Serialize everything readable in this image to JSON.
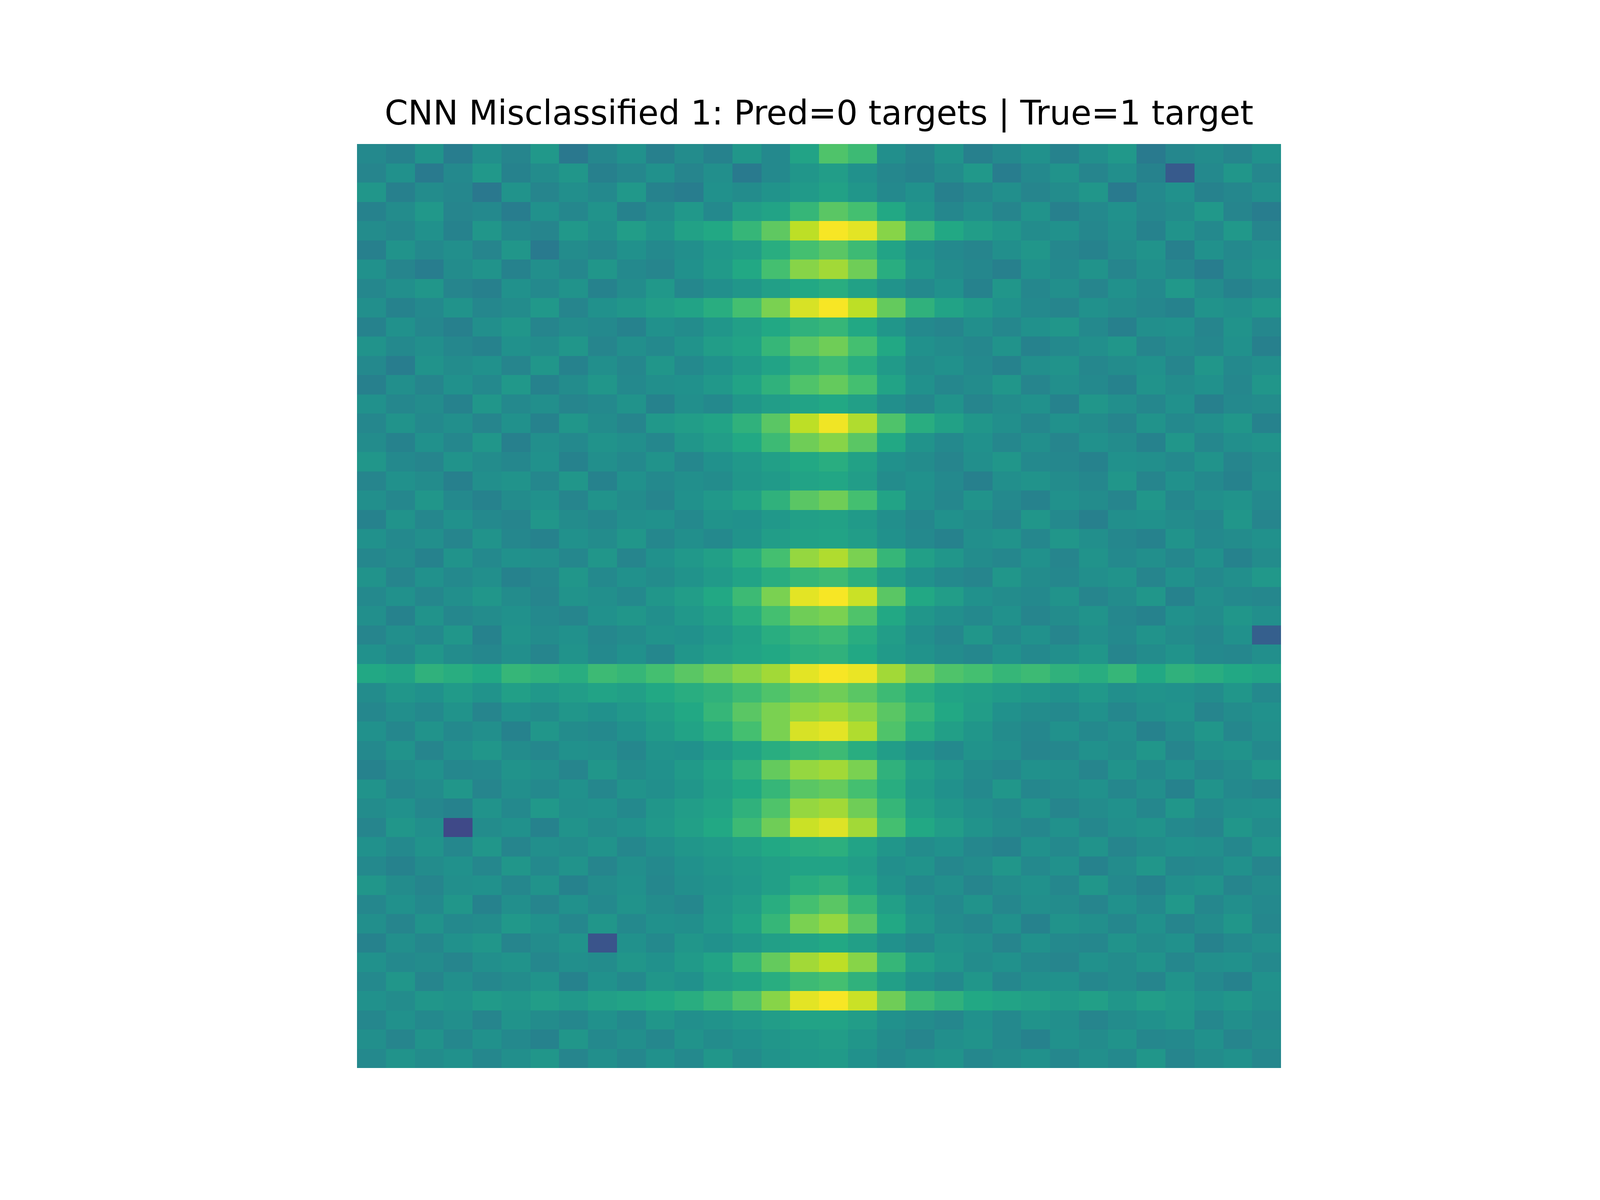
{
  "chart_data": {
    "type": "heatmap",
    "title": "CNN Misclassified 1: Pred=0 targets | True=1 target",
    "color": "viridis",
    "value_range": [
      0,
      100
    ],
    "tick_labels": false,
    "cells": [
      [
        47,
        44,
        51,
        42,
        49,
        45,
        53,
        40,
        46,
        50,
        43,
        48,
        44,
        52,
        47,
        58,
        72,
        68,
        49,
        45,
        51,
        43,
        47,
        50,
        44,
        49,
        53,
        41,
        46,
        48,
        45,
        50
      ],
      [
        45,
        50,
        41,
        47,
        53,
        44,
        48,
        52,
        43,
        46,
        50,
        45,
        49,
        41,
        47,
        52,
        55,
        50,
        46,
        44,
        48,
        53,
        42,
        47,
        51,
        45,
        49,
        44,
        28,
        47,
        52,
        46
      ],
      [
        52,
        43,
        48,
        46,
        40,
        51,
        45,
        49,
        47,
        53,
        44,
        42,
        50,
        48,
        51,
        54,
        57,
        52,
        47,
        50,
        43,
        46,
        49,
        45,
        48,
        52,
        41,
        47,
        50,
        44,
        46,
        49
      ],
      [
        44,
        48,
        53,
        45,
        47,
        42,
        50,
        46,
        51,
        44,
        48,
        53,
        47,
        55,
        58,
        66,
        74,
        70,
        60,
        52,
        46,
        49,
        45,
        51,
        43,
        47,
        50,
        46,
        48,
        53,
        45,
        42
      ],
      [
        48,
        46,
        50,
        44,
        52,
        47,
        45,
        53,
        49,
        55,
        51,
        57,
        60,
        66,
        75,
        90,
        99,
        96,
        82,
        68,
        60,
        55,
        52,
        48,
        50,
        46,
        49,
        44,
        51,
        47,
        53,
        45
      ],
      [
        43,
        51,
        47,
        49,
        45,
        52,
        41,
        48,
        46,
        50,
        47,
        49,
        53,
        55,
        62,
        70,
        74,
        68,
        58,
        50,
        47,
        45,
        49,
        52,
        46,
        44,
        48,
        51,
        43,
        50,
        47,
        49
      ],
      [
        50,
        45,
        42,
        48,
        51,
        44,
        49,
        46,
        52,
        47,
        45,
        50,
        54,
        60,
        70,
        82,
        86,
        78,
        62,
        52,
        48,
        46,
        43,
        50,
        47,
        51,
        45,
        49,
        46,
        42,
        48,
        51
      ],
      [
        46,
        49,
        52,
        45,
        43,
        50,
        47,
        51,
        44,
        48,
        53,
        46,
        49,
        52,
        56,
        60,
        62,
        57,
        51,
        47,
        50,
        44,
        52,
        46,
        49,
        45,
        50,
        47,
        53,
        48,
        44,
        47
      ],
      [
        49,
        44,
        47,
        51,
        46,
        48,
        53,
        45,
        50,
        52,
        55,
        58,
        62,
        70,
        80,
        94,
        99,
        90,
        76,
        64,
        58,
        54,
        50,
        47,
        45,
        50,
        48,
        46,
        44,
        51,
        49,
        52
      ],
      [
        44,
        50,
        46,
        43,
        49,
        52,
        45,
        48,
        47,
        44,
        50,
        48,
        52,
        56,
        60,
        64,
        66,
        60,
        52,
        47,
        45,
        49,
        46,
        50,
        52,
        47,
        43,
        49,
        50,
        45,
        51,
        46
      ],
      [
        51,
        47,
        49,
        46,
        44,
        50,
        48,
        52,
        45,
        49,
        47,
        51,
        55,
        58,
        66,
        74,
        78,
        70,
        60,
        50,
        48,
        46,
        51,
        44,
        47,
        49,
        52,
        45,
        48,
        46,
        50,
        43
      ],
      [
        47,
        42,
        51,
        48,
        50,
        45,
        52,
        44,
        49,
        46,
        52,
        47,
        50,
        54,
        58,
        64,
        68,
        62,
        54,
        48,
        50,
        47,
        44,
        49,
        51,
        46,
        48,
        50,
        45,
        52,
        47,
        49
      ],
      [
        43,
        49,
        45,
        50,
        47,
        53,
        44,
        48,
        52,
        47,
        49,
        50,
        53,
        58,
        64,
        72,
        76,
        70,
        58,
        50,
        46,
        48,
        52,
        45,
        49,
        47,
        44,
        51,
        48,
        50,
        46,
        52
      ],
      [
        50,
        46,
        48,
        44,
        52,
        47,
        49,
        45,
        47,
        51,
        44,
        49,
        47,
        52,
        55,
        58,
        60,
        56,
        49,
        46,
        51,
        45,
        48,
        50,
        44,
        52,
        49,
        46,
        50,
        43,
        47,
        48
      ],
      [
        46,
        51,
        47,
        49,
        45,
        50,
        44,
        52,
        48,
        45,
        53,
        55,
        58,
        64,
        74,
        90,
        98,
        88,
        72,
        62,
        57,
        52,
        49,
        46,
        50,
        48,
        45,
        51,
        47,
        49,
        52,
        44
      ],
      [
        48,
        44,
        50,
        46,
        52,
        43,
        49,
        47,
        51,
        49,
        46,
        52,
        55,
        60,
        68,
        78,
        82,
        74,
        60,
        51,
        47,
        50,
        46,
        49,
        45,
        50,
        48,
        44,
        52,
        46,
        49,
        51
      ],
      [
        52,
        47,
        45,
        51,
        48,
        46,
        50,
        44,
        49,
        47,
        51,
        46,
        50,
        53,
        56,
        60,
        62,
        57,
        50,
        48,
        45,
        49,
        52,
        47,
        46,
        44,
        50,
        49,
        47,
        51,
        45,
        48
      ],
      [
        45,
        50,
        48,
        43,
        49,
        51,
        46,
        52,
        44,
        50,
        47,
        49,
        48,
        52,
        54,
        58,
        59,
        55,
        48,
        50,
        47,
        43,
        49,
        51,
        48,
        46,
        52,
        45,
        50,
        47,
        44,
        49
      ],
      [
        49,
        46,
        52,
        47,
        44,
        48,
        50,
        45,
        51,
        48,
        45,
        50,
        53,
        57,
        64,
        74,
        78,
        70,
        58,
        49,
        46,
        51,
        47,
        44,
        50,
        48,
        45,
        52,
        46,
        49,
        51,
        47
      ],
      [
        44,
        51,
        46,
        50,
        47,
        45,
        52,
        48,
        46,
        49,
        50,
        47,
        51,
        50,
        53,
        56,
        57,
        54,
        49,
        46,
        50,
        48,
        45,
        52,
        47,
        43,
        49,
        50,
        48,
        46,
        52,
        45
      ],
      [
        50,
        47,
        49,
        45,
        51,
        46,
        44,
        50,
        48,
        52,
        46,
        49,
        47,
        51,
        55,
        57,
        58,
        55,
        50,
        47,
        44,
        49,
        51,
        46,
        52,
        49,
        46,
        44,
        51,
        47,
        48,
        50
      ],
      [
        46,
        48,
        44,
        51,
        47,
        50,
        49,
        46,
        52,
        45,
        50,
        53,
        56,
        62,
        70,
        84,
        88,
        80,
        66,
        56,
        52,
        48,
        46,
        50,
        45,
        51,
        47,
        49,
        46,
        50,
        44,
        48
      ],
      [
        51,
        45,
        50,
        47,
        49,
        44,
        46,
        52,
        47,
        50,
        48,
        51,
        54,
        58,
        62,
        66,
        68,
        63,
        55,
        50,
        47,
        45,
        52,
        48,
        46,
        49,
        51,
        45,
        50,
        47,
        49,
        53
      ],
      [
        47,
        50,
        46,
        49,
        52,
        48,
        45,
        51,
        49,
        47,
        52,
        55,
        60,
        68,
        80,
        96,
        99,
        92,
        74,
        60,
        55,
        50,
        48,
        47,
        51,
        45,
        48,
        52,
        44,
        49,
        47,
        46
      ],
      [
        49,
        44,
        51,
        46,
        48,
        50,
        47,
        45,
        50,
        52,
        49,
        53,
        56,
        62,
        70,
        78,
        80,
        72,
        60,
        52,
        49,
        47,
        50,
        45,
        48,
        51,
        46,
        44,
        50,
        48,
        52,
        49
      ],
      [
        45,
        49,
        47,
        52,
        44,
        51,
        48,
        50,
        46,
        48,
        51,
        50,
        53,
        57,
        62,
        66,
        68,
        62,
        55,
        49,
        46,
        52,
        47,
        50,
        45,
        49,
        47,
        51,
        48,
        46,
        50,
        30
      ],
      [
        50,
        47,
        52,
        48,
        46,
        49,
        45,
        51,
        47,
        50,
        46,
        52,
        55,
        58,
        60,
        63,
        64,
        60,
        54,
        51,
        48,
        46,
        50,
        47,
        49,
        52,
        45,
        48,
        51,
        47,
        46,
        49
      ],
      [
        60,
        58,
        64,
        62,
        60,
        66,
        64,
        62,
        68,
        66,
        70,
        74,
        78,
        82,
        86,
        96,
        99,
        97,
        86,
        78,
        72,
        70,
        66,
        68,
        64,
        62,
        66,
        60,
        64,
        62,
        60,
        58
      ],
      [
        48,
        52,
        50,
        54,
        51,
        56,
        53,
        55,
        58,
        56,
        60,
        62,
        64,
        68,
        72,
        76,
        78,
        74,
        68,
        62,
        58,
        56,
        54,
        52,
        50,
        53,
        49,
        51,
        50,
        48,
        52,
        47
      ],
      [
        46,
        49,
        47,
        51,
        45,
        50,
        48,
        52,
        50,
        53,
        56,
        60,
        66,
        74,
        80,
        84,
        86,
        82,
        74,
        66,
        60,
        55,
        50,
        48,
        47,
        50,
        46,
        49,
        51,
        45,
        48,
        50
      ],
      [
        50,
        46,
        51,
        47,
        49,
        44,
        52,
        48,
        47,
        50,
        54,
        58,
        62,
        70,
        80,
        94,
        96,
        88,
        72,
        62,
        56,
        52,
        48,
        46,
        50,
        47,
        49,
        44,
        48,
        52,
        46,
        49
      ],
      [
        47,
        51,
        45,
        49,
        52,
        48,
        46,
        50,
        49,
        46,
        51,
        50,
        54,
        58,
        62,
        66,
        68,
        62,
        55,
        50,
        47,
        51,
        49,
        45,
        46,
        50,
        48,
        52,
        45,
        49,
        51,
        47
      ],
      [
        44,
        48,
        50,
        46,
        47,
        51,
        49,
        45,
        52,
        48,
        50,
        54,
        58,
        64,
        76,
        84,
        86,
        80,
        64,
        56,
        52,
        48,
        46,
        50,
        49,
        45,
        51,
        47,
        50,
        46,
        48,
        52
      ],
      [
        51,
        46,
        48,
        52,
        45,
        49,
        47,
        50,
        46,
        51,
        49,
        52,
        56,
        60,
        66,
        74,
        76,
        70,
        62,
        54,
        50,
        47,
        52,
        46,
        48,
        50,
        46,
        49,
        44,
        51,
        47,
        45
      ],
      [
        48,
        50,
        46,
        44,
        51,
        47,
        53,
        49,
        50,
        47,
        52,
        55,
        58,
        64,
        72,
        84,
        86,
        78,
        66,
        56,
        52,
        49,
        47,
        51,
        45,
        48,
        50,
        46,
        52,
        47,
        49,
        50
      ],
      [
        45,
        52,
        49,
        22,
        48,
        50,
        44,
        51,
        48,
        50,
        53,
        56,
        60,
        68,
        78,
        92,
        95,
        86,
        70,
        60,
        55,
        51,
        48,
        46,
        50,
        46,
        49,
        51,
        47,
        45,
        52,
        48
      ],
      [
        50,
        47,
        51,
        46,
        52,
        45,
        49,
        48,
        51,
        46,
        49,
        52,
        54,
        57,
        60,
        62,
        63,
        58,
        52,
        48,
        50,
        46,
        44,
        50,
        47,
        51,
        45,
        48,
        50,
        49,
        46,
        51
      ],
      [
        47,
        44,
        48,
        50,
        46,
        52,
        47,
        51,
        45,
        49,
        47,
        50,
        52,
        54,
        56,
        58,
        58,
        55,
        49,
        51,
        46,
        48,
        52,
        47,
        50,
        44,
        48,
        52,
        46,
        47,
        50,
        45
      ],
      [
        52,
        48,
        45,
        49,
        50,
        46,
        51,
        44,
        48,
        50,
        46,
        49,
        51,
        53,
        56,
        62,
        64,
        58,
        51,
        47,
        49,
        45,
        48,
        50,
        46,
        52,
        47,
        44,
        49,
        51,
        45,
        48
      ],
      [
        46,
        50,
        47,
        52,
        44,
        49,
        45,
        50,
        47,
        51,
        48,
        46,
        52,
        55,
        62,
        70,
        74,
        66,
        56,
        50,
        47,
        51,
        46,
        49,
        48,
        45,
        50,
        47,
        53,
        46,
        49,
        47
      ],
      [
        49,
        45,
        51,
        47,
        48,
        53,
        50,
        46,
        52,
        47,
        50,
        49,
        53,
        58,
        66,
        80,
        84,
        74,
        60,
        52,
        48,
        46,
        50,
        44,
        51,
        49,
        46,
        50,
        45,
        48,
        52,
        46
      ],
      [
        44,
        49,
        46,
        50,
        52,
        45,
        48,
        51,
        26,
        50,
        47,
        52,
        50,
        53,
        56,
        58,
        60,
        56,
        50,
        47,
        51,
        49,
        45,
        50,
        47,
        46,
        51,
        48,
        50,
        44,
        47,
        49
      ],
      [
        50,
        47,
        48,
        45,
        49,
        51,
        46,
        49,
        48,
        52,
        50,
        54,
        58,
        66,
        76,
        86,
        90,
        82,
        66,
        56,
        52,
        48,
        50,
        47,
        45,
        50,
        48,
        51,
        46,
        49,
        50,
        47
      ],
      [
        47,
        52,
        45,
        49,
        46,
        48,
        51,
        44,
        50,
        47,
        52,
        50,
        55,
        58,
        62,
        68,
        70,
        64,
        56,
        50,
        47,
        52,
        46,
        49,
        50,
        46,
        48,
        45,
        51,
        47,
        44,
        50
      ],
      [
        50,
        48,
        52,
        51,
        54,
        52,
        55,
        53,
        56,
        58,
        60,
        62,
        66,
        72,
        82,
        96,
        99,
        92,
        78,
        68,
        64,
        60,
        58,
        56,
        54,
        56,
        52,
        55,
        53,
        50,
        52,
        49
      ],
      [
        46,
        50,
        47,
        49,
        45,
        51,
        48,
        46,
        50,
        47,
        52,
        49,
        51,
        53,
        55,
        58,
        58,
        55,
        50,
        48,
        46,
        50,
        47,
        51,
        49,
        45,
        48,
        50,
        52,
        46,
        49,
        47
      ],
      [
        49,
        45,
        51,
        46,
        50,
        47,
        44,
        52,
        47,
        49,
        46,
        51,
        48,
        50,
        52,
        54,
        55,
        52,
        48,
        45,
        49,
        51,
        47,
        44,
        50,
        48,
        51,
        46,
        47,
        50,
        45,
        48
      ],
      [
        47,
        51,
        48,
        50,
        46,
        49,
        52,
        45,
        49,
        46,
        50,
        47,
        52,
        48,
        51,
        53,
        54,
        50,
        47,
        49,
        51,
        46,
        48,
        50,
        46,
        49,
        47,
        52,
        45,
        48,
        50,
        46
      ]
    ]
  }
}
